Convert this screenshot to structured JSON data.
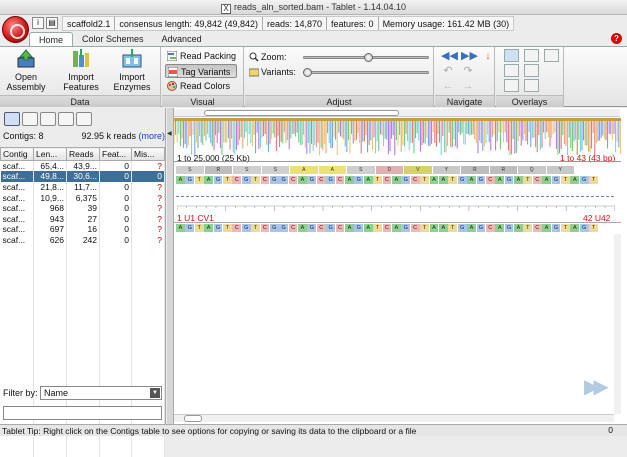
{
  "window": {
    "title": "reads_aln_sorted.bam - Tablet - 1.14.04.10"
  },
  "infobar": {
    "contig": "scaffold2.1",
    "consensus": "consensus length: 49,842 (49,842)",
    "reads": "reads: 14,870",
    "features": "features: 0",
    "memory": "Memory usage: 161.42 MB (30)"
  },
  "tabs": [
    "Home",
    "Color Schemes",
    "Advanced"
  ],
  "help_label": "?",
  "ribbon": {
    "data": {
      "label": "Data",
      "open": [
        "Open",
        "Assembly"
      ],
      "import_features": [
        "Import",
        "Features"
      ],
      "import_enzymes": [
        "Import",
        "Enzymes"
      ]
    },
    "visual": {
      "label": "Visual",
      "read_packing": "Read Packing",
      "tag_variants": "Tag Variants",
      "read_colors": "Read Colors"
    },
    "adjust": {
      "label": "Adjust",
      "zoom": "Zoom:",
      "variants": "Variants:",
      "zoom_level": 0.52,
      "variants_level": 0.0
    },
    "navigate": {
      "label": "Navigate"
    },
    "overlays": {
      "label": "Overlays"
    }
  },
  "contigs": {
    "summary": "Contigs: 8",
    "reads": "92.95 k reads",
    "more": "(more)",
    "columns": [
      "Contig",
      "Len...",
      "Reads",
      "Feat...",
      "Mis..."
    ],
    "rows": [
      [
        "scaf...",
        "65,4...",
        "43,9...",
        "0",
        "?"
      ],
      [
        "scaf...",
        "49,8...",
        "30,6...",
        "0",
        "0"
      ],
      [
        "scaf...",
        "21,8...",
        "11,7...",
        "0",
        "?"
      ],
      [
        "scaf...",
        "10,9...",
        "6,375",
        "0",
        "?"
      ],
      [
        "scaf...",
        "968",
        "39",
        "0",
        "?"
      ],
      [
        "scaf...",
        "943",
        "27",
        "0",
        "?"
      ],
      [
        "scaf...",
        "697",
        "16",
        "0",
        "?"
      ],
      [
        "scaf...",
        "626",
        "242",
        "0",
        "?"
      ]
    ],
    "selected": 1
  },
  "filter": {
    "label": "Filter by:",
    "value": "Name",
    "input": ""
  },
  "viewer": {
    "overview_range": "1 to 25,000 (25 Kb)",
    "view_range": "1 to 43 (43 bp)",
    "ruler_left": "1 U1 CV1",
    "ruler_right": "42 U42",
    "consensus_seq": [
      "A",
      "G",
      "T",
      "A",
      "G",
      "T",
      "C",
      "G",
      "T",
      "C",
      "G",
      "G",
      "C",
      "A",
      "G",
      "C",
      "G",
      "C",
      "A",
      "G",
      "A",
      "T",
      "C",
      "A",
      "G",
      "C",
      "T",
      "A",
      "A",
      "T",
      "G",
      "A",
      "G",
      "C",
      "A",
      "G",
      "A",
      "T",
      "C",
      "A",
      "G",
      "T",
      "A",
      "G",
      "T"
    ],
    "amino_acids": [
      "S",
      "R",
      "S",
      "S",
      "A",
      "A",
      "S",
      "D",
      "V",
      "Y",
      "R",
      "R",
      "Q",
      "Y"
    ],
    "read_seq": [
      "A",
      "G",
      "T",
      "A",
      "G",
      "T",
      "C",
      "G",
      "T",
      "C",
      "G",
      "G",
      "C",
      "A",
      "G",
      "C",
      "G",
      "C",
      "A",
      "G",
      "A",
      "T",
      "C",
      "A",
      "G",
      "C",
      "T",
      "A",
      "A",
      "T",
      "G",
      "A",
      "G",
      "C",
      "A",
      "G",
      "A",
      "T",
      "C",
      "A",
      "G",
      "T",
      "A",
      "G",
      "T"
    ]
  },
  "colors": {
    "A": "#8ed08e",
    "C": "#f2b6b6",
    "G": "#a8c6ec",
    "T": "#ecdc98",
    "accent_red": "#dd1111",
    "selected_row": "#3d6f98"
  },
  "status": {
    "tip": "Tablet Tip: Right click on the Contigs table to see options for copying or saving its data to the clipboard or a file",
    "right": "0"
  }
}
